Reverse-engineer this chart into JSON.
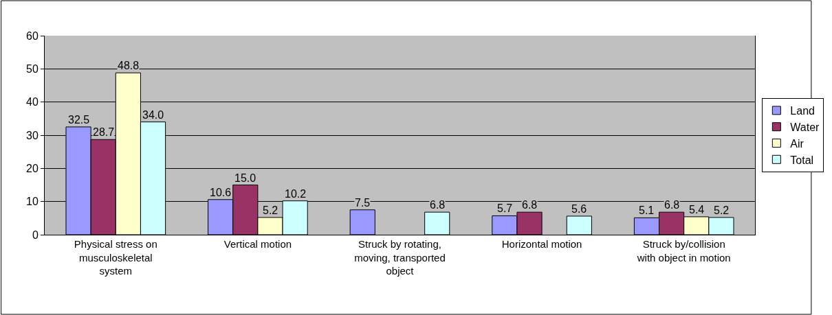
{
  "chart_data": {
    "type": "bar",
    "categories": [
      "Physical stress on\nmusculoskeletal\nsystem",
      "Vertical motion",
      "Struck by rotating,\nmoving, transported\nobject",
      "Horizontal motion",
      "Struck by/collision\nwith object in motion"
    ],
    "series": [
      {
        "name": "Land",
        "color": "#9999ff",
        "values": [
          32.5,
          10.6,
          7.5,
          5.7,
          5.1
        ],
        "value_labels": [
          "32.5",
          "10.6",
          "7.5",
          "5.7",
          "5.1"
        ]
      },
      {
        "name": "Water",
        "color": "#993366",
        "values": [
          28.7,
          15.0,
          null,
          6.8,
          6.8
        ],
        "value_labels": [
          "28.7",
          "15.0",
          null,
          "6.8",
          "6.8"
        ]
      },
      {
        "name": "Air",
        "color": "#ffffcc",
        "values": [
          48.8,
          5.2,
          null,
          null,
          5.4
        ],
        "value_labels": [
          "48.8",
          "5.2",
          null,
          null,
          "5.4"
        ]
      },
      {
        "name": "Total",
        "color": "#ccffff",
        "values": [
          34.0,
          10.2,
          6.8,
          5.6,
          5.2
        ],
        "value_labels": [
          "34.0",
          "10.2",
          "6.8",
          "5.6",
          "5.2"
        ]
      }
    ],
    "ylim": [
      0,
      60
    ],
    "yticks": [
      0,
      10,
      20,
      30,
      40,
      50,
      60
    ],
    "grid": "y",
    "legend": "right"
  }
}
